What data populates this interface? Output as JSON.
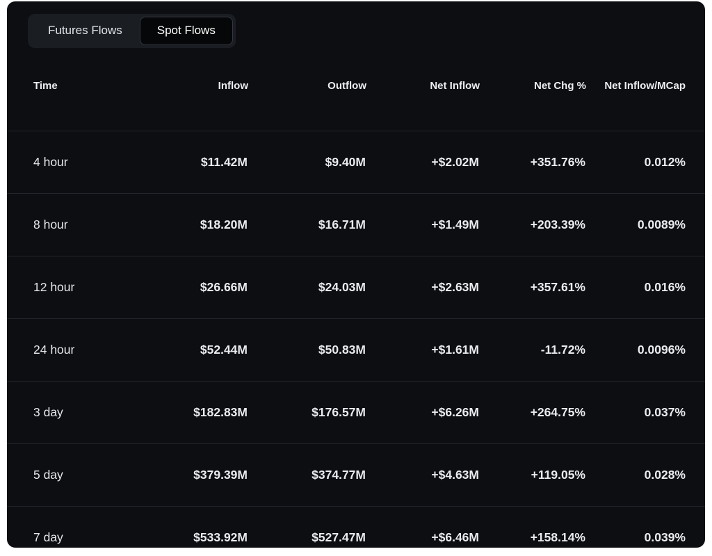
{
  "tabs": [
    {
      "label": "Futures Flows",
      "active": false
    },
    {
      "label": "Spot Flows",
      "active": true
    }
  ],
  "table": {
    "columns": [
      "Time",
      "Inflow",
      "Outflow",
      "Net Inflow",
      "Net Chg %",
      "Net Inflow/MCap"
    ],
    "rows": [
      {
        "time": "4 hour",
        "inflow": "$11.42M",
        "outflow": "$9.40M",
        "net_inflow": "+$2.02M",
        "net_chg": "+351.76%",
        "mcap": "0.012%"
      },
      {
        "time": "8 hour",
        "inflow": "$18.20M",
        "outflow": "$16.71M",
        "net_inflow": "+$1.49M",
        "net_chg": "+203.39%",
        "mcap": "0.0089%"
      },
      {
        "time": "12 hour",
        "inflow": "$26.66M",
        "outflow": "$24.03M",
        "net_inflow": "+$2.63M",
        "net_chg": "+357.61%",
        "mcap": "0.016%"
      },
      {
        "time": "24 hour",
        "inflow": "$52.44M",
        "outflow": "$50.83M",
        "net_inflow": "+$1.61M",
        "net_chg": "-11.72%",
        "mcap": "0.0096%"
      },
      {
        "time": "3 day",
        "inflow": "$182.83M",
        "outflow": "$176.57M",
        "net_inflow": "+$6.26M",
        "net_chg": "+264.75%",
        "mcap": "0.037%"
      },
      {
        "time": "5 day",
        "inflow": "$379.39M",
        "outflow": "$374.77M",
        "net_inflow": "+$4.63M",
        "net_chg": "+119.05%",
        "mcap": "0.028%"
      },
      {
        "time": "7 day",
        "inflow": "$533.92M",
        "outflow": "$527.47M",
        "net_inflow": "+$6.46M",
        "net_chg": "+158.14%",
        "mcap": "0.039%"
      }
    ]
  },
  "colors": {
    "positive": "#4fae93",
    "negative": "#e2584c",
    "panel_background": "#0c0e12"
  }
}
